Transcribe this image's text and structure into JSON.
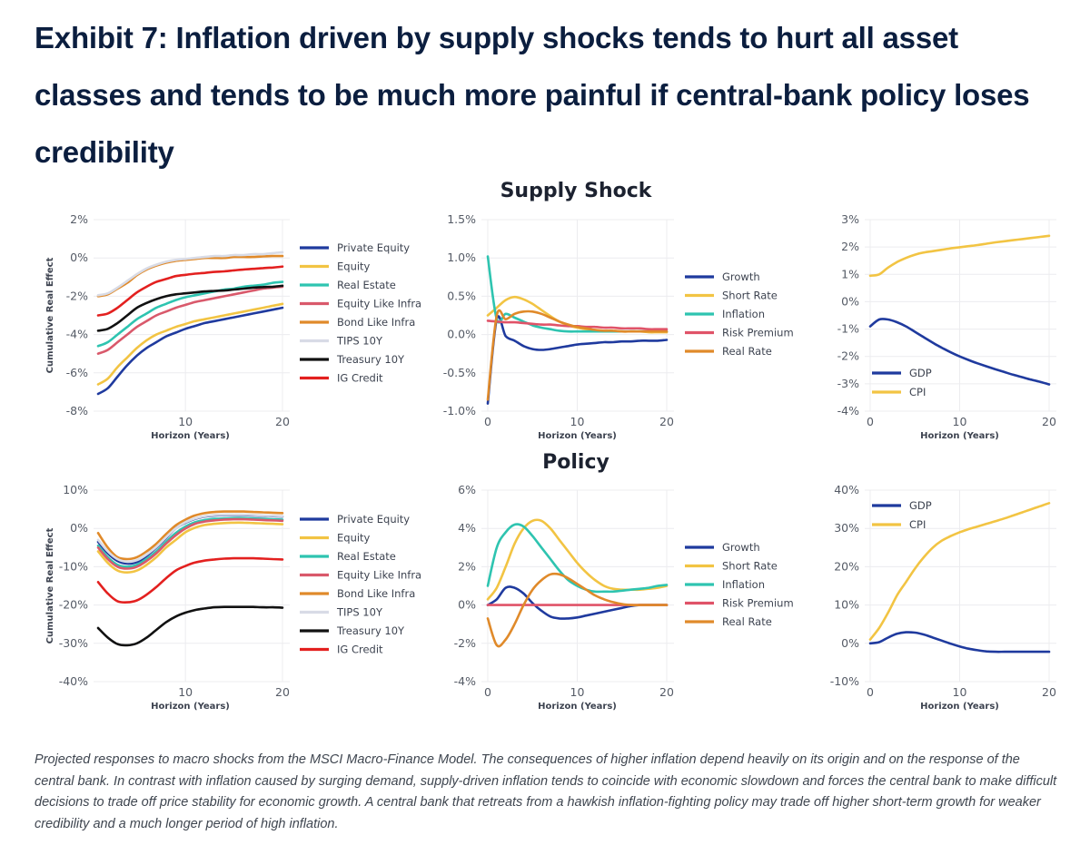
{
  "title": "Exhibit 7: Inflation driven by supply shocks tends to hurt all asset classes and tends to be much more painful if central-bank policy loses credibility",
  "group_titles": {
    "supply": "Supply Shock",
    "policy": "Policy"
  },
  "caption": "Projected responses to macro shocks from the MSCI Macro-Finance Model. The consequences of higher inflation depend heavily on its origin and on the response of the central bank. In contrast with inflation caused by surging demand, supply-driven inflation tends to coincide with economic slowdown and forces the central bank to make difficult decisions to trade off price stability for economic growth. A central bank that retreats from a hawkish inflation-fighting policy may trade off higher short-term growth for weaker credibility and a much longer period of high inflation.",
  "colors": {
    "Private Equity": "#1f3a9e",
    "Equity": "#f2c443",
    "Real Estate": "#2ec4b0",
    "Equity Like Infra": "#d9596b",
    "Bond Like Infra": "#e08a2a",
    "TIPS 10Y": "#d8dbe6",
    "Treasury 10Y": "#111111",
    "IG Credit": "#e3201f",
    "Growth": "#1f3a9e",
    "Short Rate": "#f2c443",
    "Inflation": "#2ec4b0",
    "Risk Premium": "#e05368",
    "Real Rate": "#e08a2a",
    "GDP": "#1f3a9e",
    "CPI": "#f2c443"
  },
  "chart_data": [
    {
      "id": "supply-assets",
      "group": "Supply Shock",
      "type": "line",
      "xlabel": "Horizon (Years)",
      "ylabel": "Cumulative Real Effect",
      "xlim": [
        1,
        20
      ],
      "xticks": [
        10,
        20
      ],
      "ylim": [
        -8,
        2
      ],
      "yticks": [
        2,
        0,
        -2,
        -4,
        -6,
        -8
      ],
      "ytick_format": "pct0",
      "grid": true,
      "legend": "right",
      "x": [
        1,
        2,
        3,
        4,
        5,
        6,
        7,
        8,
        9,
        10,
        11,
        12,
        13,
        14,
        15,
        16,
        17,
        18,
        19,
        20
      ],
      "series": [
        {
          "name": "Private Equity",
          "values": [
            -7.1,
            -6.8,
            -6.2,
            -5.6,
            -5.1,
            -4.7,
            -4.4,
            -4.1,
            -3.9,
            -3.7,
            -3.55,
            -3.4,
            -3.3,
            -3.2,
            -3.1,
            -3.0,
            -2.9,
            -2.8,
            -2.7,
            -2.6
          ]
        },
        {
          "name": "Equity",
          "values": [
            -6.6,
            -6.3,
            -5.7,
            -5.2,
            -4.7,
            -4.3,
            -4.0,
            -3.8,
            -3.6,
            -3.45,
            -3.3,
            -3.2,
            -3.1,
            -3.0,
            -2.9,
            -2.8,
            -2.7,
            -2.6,
            -2.5,
            -2.4
          ]
        },
        {
          "name": "Real Estate",
          "values": [
            -4.6,
            -4.4,
            -4.0,
            -3.6,
            -3.2,
            -2.9,
            -2.6,
            -2.4,
            -2.2,
            -2.05,
            -1.95,
            -1.85,
            -1.75,
            -1.65,
            -1.6,
            -1.5,
            -1.45,
            -1.4,
            -1.3,
            -1.25
          ]
        },
        {
          "name": "Equity Like Infra",
          "values": [
            -5.0,
            -4.8,
            -4.4,
            -4.0,
            -3.6,
            -3.3,
            -3.0,
            -2.8,
            -2.6,
            -2.45,
            -2.3,
            -2.2,
            -2.1,
            -2.0,
            -1.9,
            -1.8,
            -1.7,
            -1.6,
            -1.55,
            -1.5
          ]
        },
        {
          "name": "Bond Like Infra",
          "values": [
            -2.0,
            -1.9,
            -1.6,
            -1.3,
            -0.9,
            -0.6,
            -0.4,
            -0.25,
            -0.15,
            -0.1,
            -0.05,
            0,
            0,
            0,
            0.05,
            0.05,
            0.05,
            0.08,
            0.1,
            0.1
          ]
        },
        {
          "name": "TIPS 10Y",
          "values": [
            -1.95,
            -1.85,
            -1.55,
            -1.2,
            -0.85,
            -0.55,
            -0.35,
            -0.2,
            -0.1,
            -0.05,
            0,
            0.05,
            0.1,
            0.1,
            0.15,
            0.15,
            0.2,
            0.2,
            0.25,
            0.3
          ]
        },
        {
          "name": "Treasury 10Y",
          "values": [
            -3.8,
            -3.7,
            -3.4,
            -3.0,
            -2.6,
            -2.35,
            -2.15,
            -2.0,
            -1.9,
            -1.85,
            -1.8,
            -1.75,
            -1.72,
            -1.7,
            -1.65,
            -1.6,
            -1.55,
            -1.52,
            -1.5,
            -1.45
          ]
        },
        {
          "name": "IG Credit",
          "values": [
            -3.0,
            -2.9,
            -2.6,
            -2.2,
            -1.8,
            -1.5,
            -1.25,
            -1.1,
            -0.95,
            -0.88,
            -0.82,
            -0.78,
            -0.73,
            -0.7,
            -0.65,
            -0.6,
            -0.57,
            -0.53,
            -0.5,
            -0.45
          ]
        }
      ]
    },
    {
      "id": "supply-factors",
      "group": "Supply Shock",
      "type": "line",
      "xlabel": "Horizon (Years)",
      "ylabel": "",
      "xlim": [
        0,
        20
      ],
      "xticks": [
        0,
        10,
        20
      ],
      "ylim": [
        -1.0,
        1.5
      ],
      "yticks": [
        1.5,
        1.0,
        0.5,
        0.0,
        -0.5,
        -1.0
      ],
      "ytick_format": "pct1",
      "grid": true,
      "legend": "right",
      "x": [
        0,
        1,
        2,
        3,
        4,
        5,
        6,
        7,
        8,
        9,
        10,
        11,
        12,
        13,
        14,
        15,
        16,
        17,
        18,
        19,
        20
      ],
      "series": [
        {
          "name": "Growth",
          "values": [
            -0.9,
            0.2,
            -0.02,
            -0.08,
            -0.15,
            -0.19,
            -0.2,
            -0.19,
            -0.17,
            -0.15,
            -0.13,
            -0.12,
            -0.11,
            -0.1,
            -0.1,
            -0.09,
            -0.09,
            -0.08,
            -0.08,
            -0.08,
            -0.07
          ]
        },
        {
          "name": "Short Rate",
          "values": [
            0.25,
            0.35,
            0.45,
            0.49,
            0.46,
            0.4,
            0.32,
            0.24,
            0.17,
            0.12,
            0.09,
            0.07,
            0.06,
            0.05,
            0.05,
            0.04,
            0.04,
            0.04,
            0.03,
            0.03,
            0.03
          ]
        },
        {
          "name": "Inflation",
          "values": [
            1.02,
            0.2,
            0.27,
            0.22,
            0.17,
            0.12,
            0.09,
            0.07,
            0.05,
            0.04,
            0.04,
            0.04,
            0.04,
            0.04,
            0.04,
            0.04,
            0.04,
            0.04,
            0.04,
            0.04,
            0.04
          ]
        },
        {
          "name": "Risk Premium",
          "values": [
            0.18,
            0.17,
            0.16,
            0.16,
            0.15,
            0.14,
            0.13,
            0.13,
            0.12,
            0.11,
            0.11,
            0.1,
            0.1,
            0.09,
            0.09,
            0.08,
            0.08,
            0.08,
            0.07,
            0.07,
            0.07
          ]
        },
        {
          "name": "Real Rate",
          "values": [
            -0.85,
            0.25,
            0.2,
            0.27,
            0.3,
            0.3,
            0.27,
            0.22,
            0.17,
            0.13,
            0.1,
            0.08,
            0.06,
            0.05,
            0.05,
            0.04,
            0.04,
            0.04,
            0.04,
            0.04,
            0.04
          ]
        }
      ]
    },
    {
      "id": "supply-macro",
      "group": "Supply Shock",
      "type": "line",
      "xlabel": "Horizon (Years)",
      "ylabel": "",
      "xlim": [
        0,
        20
      ],
      "xticks": [
        0,
        10,
        20
      ],
      "ylim": [
        -4,
        3
      ],
      "yticks": [
        3,
        2,
        1,
        0,
        -1,
        -2,
        -3,
        -4
      ],
      "ytick_format": "pct0",
      "grid": true,
      "legend": "bottom-left",
      "x": [
        0,
        1,
        2,
        3,
        4,
        5,
        6,
        7,
        8,
        9,
        10,
        11,
        12,
        13,
        14,
        15,
        16,
        17,
        18,
        19,
        20
      ],
      "series": [
        {
          "name": "GDP",
          "values": [
            -0.9,
            -0.65,
            -0.65,
            -0.75,
            -0.9,
            -1.1,
            -1.3,
            -1.5,
            -1.68,
            -1.85,
            -2.0,
            -2.13,
            -2.25,
            -2.36,
            -2.47,
            -2.57,
            -2.67,
            -2.76,
            -2.85,
            -2.93,
            -3.02
          ]
        },
        {
          "name": "CPI",
          "values": [
            0.95,
            1.0,
            1.25,
            1.45,
            1.6,
            1.72,
            1.8,
            1.85,
            1.9,
            1.95,
            1.99,
            2.03,
            2.07,
            2.12,
            2.17,
            2.21,
            2.25,
            2.29,
            2.33,
            2.37,
            2.41
          ]
        }
      ]
    },
    {
      "id": "policy-assets",
      "group": "Policy",
      "type": "line",
      "xlabel": "Horizon (Years)",
      "ylabel": "Cumulative Real Effect",
      "xlim": [
        1,
        20
      ],
      "xticks": [
        10,
        20
      ],
      "ylim": [
        -40,
        10
      ],
      "yticks": [
        10,
        0,
        -10,
        -20,
        -30,
        -40
      ],
      "ytick_format": "pct0",
      "grid": true,
      "legend": "right",
      "x": [
        1,
        2,
        3,
        4,
        5,
        6,
        7,
        8,
        9,
        10,
        11,
        12,
        13,
        14,
        15,
        16,
        17,
        18,
        19,
        20
      ],
      "series": [
        {
          "name": "Private Equity",
          "values": [
            -3.5,
            -6.5,
            -8.5,
            -9.2,
            -8.8,
            -7.2,
            -5,
            -2.5,
            0,
            1.5,
            2.5,
            3.1,
            3.4,
            3.5,
            3.5,
            3.5,
            3.4,
            3.3,
            3.2,
            3.1
          ]
        },
        {
          "name": "Equity",
          "values": [
            -6,
            -9,
            -11,
            -11.5,
            -11,
            -9.5,
            -7.5,
            -5,
            -3,
            -1,
            0.2,
            0.9,
            1.2,
            1.4,
            1.5,
            1.5,
            1.4,
            1.3,
            1.2,
            1.1
          ]
        },
        {
          "name": "Real Estate",
          "values": [
            -4.5,
            -7.5,
            -9.5,
            -10,
            -9.5,
            -8,
            -6,
            -3.5,
            -1.2,
            0.5,
            1.6,
            2.2,
            2.5,
            2.6,
            2.7,
            2.7,
            2.6,
            2.5,
            2.4,
            2.3
          ]
        },
        {
          "name": "Equity Like Infra",
          "values": [
            -5,
            -8,
            -10,
            -10.5,
            -10,
            -8.5,
            -6.5,
            -4,
            -1.8,
            0,
            1.2,
            1.8,
            2.1,
            2.3,
            2.4,
            2.4,
            2.3,
            2.2,
            2.1,
            2.0
          ]
        },
        {
          "name": "Bond Like Infra",
          "values": [
            -1.2,
            -5,
            -7.5,
            -8,
            -7.5,
            -6,
            -4,
            -1.5,
            0.8,
            2.3,
            3.4,
            4.0,
            4.3,
            4.4,
            4.4,
            4.4,
            4.3,
            4.2,
            4.1,
            4.0
          ]
        },
        {
          "name": "TIPS 10Y",
          "values": [
            -3,
            -6,
            -8,
            -8.7,
            -8.3,
            -6.8,
            -4.8,
            -2.3,
            0,
            1.6,
            2.6,
            3.2,
            3.5,
            3.6,
            3.6,
            3.6,
            3.5,
            3.4,
            3.3,
            3.2
          ]
        },
        {
          "name": "Treasury 10Y",
          "values": [
            -26,
            -28.5,
            -30.2,
            -30.5,
            -30,
            -28.5,
            -26.5,
            -24.5,
            -23,
            -22,
            -21.3,
            -20.9,
            -20.6,
            -20.5,
            -20.5,
            -20.5,
            -20.5,
            -20.6,
            -20.6,
            -20.7
          ]
        },
        {
          "name": "IG Credit",
          "values": [
            -14,
            -17,
            -19,
            -19.3,
            -18.8,
            -17.3,
            -15.3,
            -13,
            -11,
            -9.8,
            -8.9,
            -8.4,
            -8.1,
            -7.9,
            -7.8,
            -7.8,
            -7.8,
            -7.9,
            -8.0,
            -8.1
          ]
        }
      ]
    },
    {
      "id": "policy-factors",
      "group": "Policy",
      "type": "line",
      "xlabel": "Horizon (Years)",
      "ylabel": "",
      "xlim": [
        0,
        20
      ],
      "xticks": [
        0,
        10,
        20
      ],
      "ylim": [
        -4,
        6
      ],
      "yticks": [
        6,
        4,
        2,
        0,
        -2,
        -4
      ],
      "ytick_format": "pct0",
      "grid": true,
      "legend": "right",
      "x": [
        0,
        1,
        2,
        3,
        4,
        5,
        6,
        7,
        8,
        9,
        10,
        11,
        12,
        13,
        14,
        15,
        16,
        17,
        18,
        19,
        20
      ],
      "series": [
        {
          "name": "Growth",
          "values": [
            0,
            0.3,
            0.9,
            0.9,
            0.6,
            0.1,
            -0.3,
            -0.6,
            -0.7,
            -0.7,
            -0.65,
            -0.55,
            -0.45,
            -0.35,
            -0.25,
            -0.15,
            -0.05,
            0,
            0,
            0,
            0
          ]
        },
        {
          "name": "Short Rate",
          "values": [
            0.3,
            0.9,
            2.0,
            3.2,
            4.0,
            4.4,
            4.4,
            4.0,
            3.4,
            2.8,
            2.2,
            1.7,
            1.3,
            1.0,
            0.85,
            0.8,
            0.8,
            0.8,
            0.85,
            0.9,
            1.0
          ]
        },
        {
          "name": "Inflation",
          "values": [
            1.0,
            3.0,
            3.8,
            4.2,
            4.1,
            3.6,
            3.0,
            2.4,
            1.8,
            1.3,
            1.0,
            0.8,
            0.7,
            0.7,
            0.7,
            0.75,
            0.8,
            0.85,
            0.9,
            1.0,
            1.05
          ]
        },
        {
          "name": "Risk Premium",
          "values": [
            0,
            0,
            0,
            0,
            0,
            0,
            0,
            0,
            0,
            0,
            0,
            0,
            0,
            0,
            0,
            0,
            0,
            0,
            0,
            0,
            0
          ]
        },
        {
          "name": "Real Rate",
          "values": [
            -0.7,
            -2.1,
            -1.8,
            -1.0,
            0,
            0.8,
            1.3,
            1.6,
            1.6,
            1.4,
            1.1,
            0.8,
            0.5,
            0.3,
            0.15,
            0.05,
            0,
            0,
            0,
            0,
            0
          ]
        }
      ]
    },
    {
      "id": "policy-macro",
      "group": "Policy",
      "type": "line",
      "xlabel": "Horizon (Years)",
      "ylabel": "",
      "xlim": [
        0,
        20
      ],
      "xticks": [
        0,
        10,
        20
      ],
      "ylim": [
        -10,
        40
      ],
      "yticks": [
        40,
        30,
        20,
        10,
        0,
        -10
      ],
      "ytick_format": "pct0",
      "grid": true,
      "legend": "top-left",
      "x": [
        0,
        1,
        2,
        3,
        4,
        5,
        6,
        7,
        8,
        9,
        10,
        11,
        12,
        13,
        14,
        15,
        16,
        17,
        18,
        19,
        20
      ],
      "series": [
        {
          "name": "GDP",
          "values": [
            0,
            0.3,
            1.5,
            2.5,
            2.9,
            2.8,
            2.3,
            1.5,
            0.7,
            -0.1,
            -0.8,
            -1.4,
            -1.8,
            -2.1,
            -2.2,
            -2.2,
            -2.2,
            -2.2,
            -2.2,
            -2.2,
            -2.2
          ]
        },
        {
          "name": "CPI",
          "values": [
            1,
            4,
            8,
            12.5,
            16,
            19.5,
            22.5,
            25,
            26.8,
            28,
            29,
            29.8,
            30.5,
            31.2,
            31.9,
            32.6,
            33.4,
            34.2,
            35,
            35.8,
            36.6
          ]
        }
      ]
    }
  ]
}
